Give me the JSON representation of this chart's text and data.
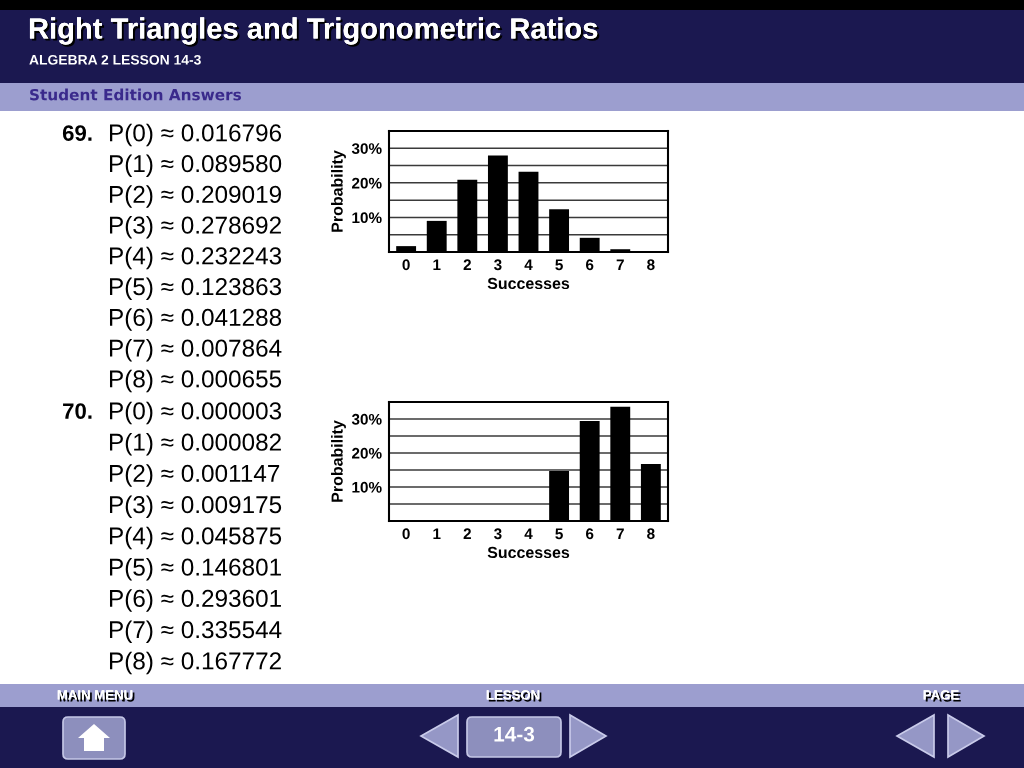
{
  "chart_data": [
    {
      "type": "bar",
      "title": "Right Triangles and Trigonometric Ratios",
      "categories": [
        "0",
        "1",
        "2",
        "3",
        "4",
        "5",
        "6",
        "7",
        "8"
      ],
      "values": [
        1.7,
        9.0,
        20.9,
        27.9,
        23.2,
        12.4,
        4.1,
        0.8,
        0.1
      ],
      "color": "#000000",
      "xlabel": "Successes",
      "ylabel": "Probability",
      "ylim": [
        0,
        35
      ],
      "yticks": [
        {
          "value": 5,
          "label": null
        },
        {
          "value": 10,
          "label": "10%"
        },
        {
          "value": 15,
          "label": null
        },
        {
          "value": 20,
          "label": "20%"
        },
        {
          "value": 25,
          "label": null
        },
        {
          "value": 30,
          "label": "30%"
        }
      ],
      "grid": "y",
      "annotations": [
        "ALGEBRA 2 LESSON 14-3",
        "Student Edition Answers",
        "69.",
        "P(0) ≈ 0.016796",
        "P(1) ≈ 0.089580",
        "P(2) ≈ 0.209019",
        "P(3) ≈ 0.278692",
        "P(4) ≈ 0.232243",
        "P(5) ≈ 0.123863",
        "P(6) ≈ 0.041288",
        "P(7) ≈ 0.007864",
        "P(8) ≈ 0.000655"
      ]
    },
    {
      "type": "bar",
      "categories": [
        "0",
        "1",
        "2",
        "3",
        "4",
        "5",
        "6",
        "7",
        "8"
      ],
      "values": [
        null,
        null,
        null,
        null,
        null,
        14.7,
        29.4,
        33.6,
        16.8
      ],
      "color": "#000000",
      "xlabel": "Successes",
      "ylabel": "Probability",
      "ylim": [
        0,
        35
      ],
      "yticks": [
        {
          "value": 5,
          "label": null
        },
        {
          "value": 10,
          "label": "10%"
        },
        {
          "value": 15,
          "label": null
        },
        {
          "value": 20,
          "label": "20%"
        },
        {
          "value": 25,
          "label": null
        },
        {
          "value": 30,
          "label": "30%"
        }
      ],
      "grid": "y",
      "annotations": [
        "70.",
        "P(0) ≈ 0.000003",
        "P(1) ≈ 0.000082",
        "P(2) ≈ 0.001147",
        "P(3) ≈ 0.009175",
        "P(4) ≈ 0.045875",
        "P(5) ≈ 0.146801",
        "P(6) ≈ 0.293601",
        "P(7) ≈ 0.335544",
        "P(8) ≈ 0.167772",
        "MAIN MENU",
        "LESSON",
        "PAGE",
        "14-3"
      ]
    }
  ]
}
